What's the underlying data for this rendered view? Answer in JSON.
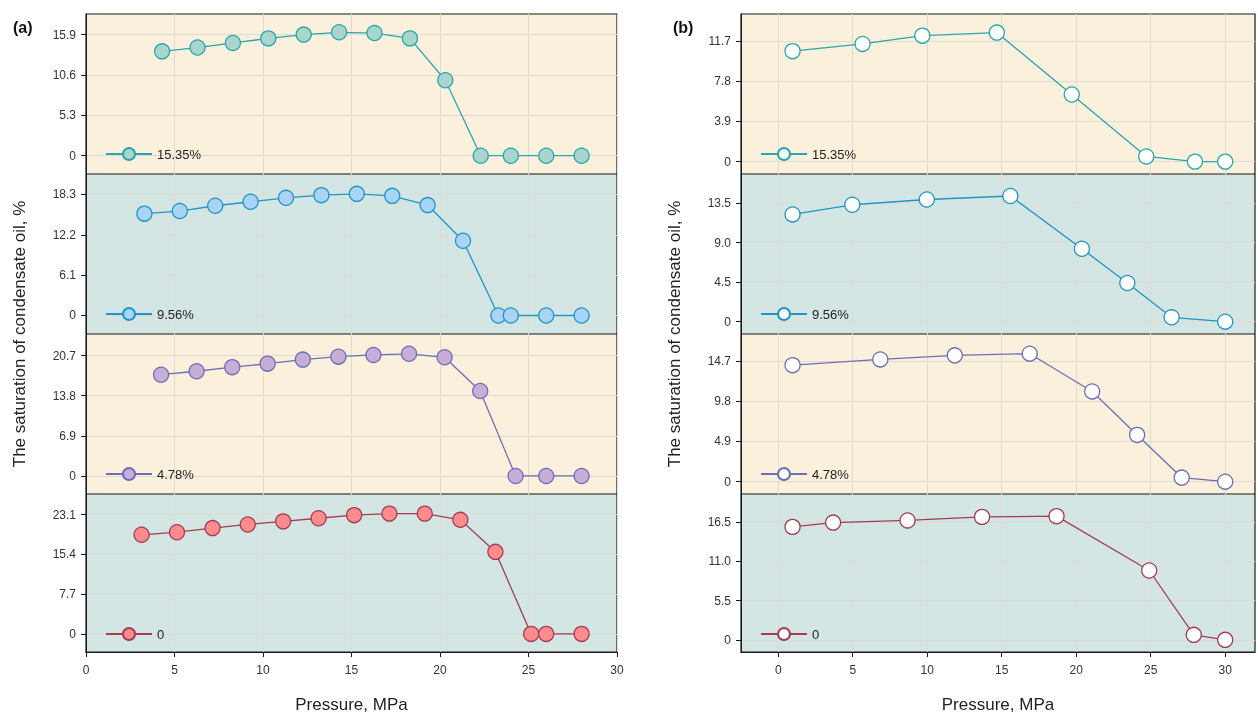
{
  "chart_data": [
    {
      "type": "line",
      "title": "(a)",
      "ylabel": "The saturation of condensate oil, %",
      "x": [
        4.3,
        6.3,
        8.3,
        10.3,
        12.3,
        14.3,
        16.3,
        18.3,
        20.3,
        22.3,
        24,
        26,
        28
      ],
      "series": [
        {
          "name": "15.35%",
          "color": "#2aa6ae",
          "colors": [
            "#a8d6cd",
            "#a8d6cd",
            "#a8d6cd",
            "#a8d6cd",
            "#a8d6cd",
            "#a8d6cd",
            "#a8d6cd",
            "#a8d6cd",
            "#a8d6cd",
            "#a8d6cd",
            "#a8d6cd",
            "#a8d6cd",
            "#a8d6cd"
          ],
          "values": [
            13.7,
            14.2,
            14.8,
            15.4,
            15.9,
            16.2,
            16.1,
            15.4,
            9.9,
            0,
            0,
            0,
            0
          ]
        }
      ],
      "xlim": [
        0,
        30
      ],
      "xticks": [
        0,
        5,
        10,
        15,
        20,
        25,
        30
      ],
      "ylim": [
        -2.4,
        18.6
      ],
      "yticks": [
        0,
        5.3,
        10.6,
        15.9
      ],
      "grid": true,
      "legend": "bottom left",
      "marker": "circle",
      "tick_labels": "y"
    },
    {
      "type": "line",
      "x": [
        3.3,
        5.3,
        7.3,
        9.3,
        11.3,
        13.3,
        15.3,
        17.3,
        19.3,
        21.3,
        23.3,
        24,
        26,
        28
      ],
      "series": [
        {
          "name": "9.56%",
          "color": "#1e96c6",
          "colors": [
            "#aad4f5",
            "#aad4f5",
            "#aad4f5",
            "#aad4f5",
            "#aad4f5",
            "#aad4f5",
            "#aad4f5",
            "#aad4f5",
            "#aad4f5",
            "#aad4f5",
            "#aad4f5",
            "#aad4f5",
            "#aad4f5",
            "#aad4f5"
          ],
          "values": [
            15.4,
            15.8,
            16.6,
            17.2,
            17.8,
            18.2,
            18.4,
            18.1,
            16.7,
            11.3,
            0,
            0,
            0,
            0
          ]
        }
      ],
      "xlim": [
        0,
        30
      ],
      "xticks": [
        0,
        5,
        10,
        15,
        20,
        25,
        30
      ],
      "ylim": [
        -2.8,
        21.4
      ],
      "yticks": [
        0,
        6.1,
        12.2,
        18.3
      ],
      "grid": true,
      "legend": "bottom left",
      "marker": "circle",
      "tick_labels": "y"
    },
    {
      "type": "line",
      "x": [
        4.24,
        6.25,
        8.26,
        10.26,
        12.25,
        14.26,
        16.24,
        18.25,
        20.26,
        22.27,
        24.27,
        26,
        28
      ],
      "series": [
        {
          "name": "4.78%",
          "color": "#6e6eb6",
          "colors": [
            "#c6aed8",
            "#c6aed8",
            "#c6aed8",
            "#c6aed8",
            "#c6aed8",
            "#c6aed8",
            "#c6aed8",
            "#c6aed8",
            "#c6aed8",
            "#c6aed8",
            "#c6aed8",
            "#c6aed8",
            "#c6aed8"
          ],
          "values": [
            17.4,
            18,
            18.7,
            19.3,
            20,
            20.5,
            20.8,
            21,
            20.4,
            14.6,
            0,
            0,
            0
          ]
        }
      ],
      "xlim": [
        0,
        30
      ],
      "xticks": [
        0,
        5,
        10,
        15,
        20,
        25,
        30
      ],
      "ylim": [
        -3.1,
        24.4
      ],
      "yticks": [
        0,
        6.9,
        13.8,
        20.7
      ],
      "grid": true,
      "legend": "bottom left",
      "marker": "circle",
      "tick_labels": "y"
    },
    {
      "type": "line",
      "xlabel": "Pressure, MPa",
      "x": [
        3.14,
        5.14,
        7.15,
        9.14,
        11.14,
        13.14,
        15.15,
        17.14,
        19.14,
        21.15,
        23.13,
        25.15,
        26,
        28
      ],
      "series": [
        {
          "name": "0",
          "color": "#a23c58",
          "colors": [
            "#ff8c8c",
            "#ff8c8c",
            "#ff8c8c",
            "#ff8c8c",
            "#ff8c8c",
            "#ff8c8c",
            "#ff8c8c",
            "#ff8c8c",
            "#ff8c8c",
            "#ff8c8c",
            "#ff8c8c",
            "#ff8c8c",
            "#ff8c8c",
            "#ff8c8c"
          ],
          "values": [
            19.2,
            19.7,
            20.5,
            21.2,
            21.8,
            22.4,
            23,
            23.3,
            23.3,
            22.1,
            15.9,
            0,
            0,
            0
          ]
        }
      ],
      "xlim": [
        0,
        30
      ],
      "xticks": [
        0,
        5,
        10,
        15,
        20,
        25,
        30
      ],
      "ylim": [
        -3.5,
        27.1
      ],
      "yticks": [
        0,
        7.7,
        15.4,
        23.1
      ],
      "grid": true,
      "legend": "bottom left",
      "marker": "circle"
    },
    {
      "type": "line",
      "title": "(b)",
      "ylabel": "The saturation of condensate oil, %",
      "x": [
        0.96,
        5.66,
        9.67,
        14.67,
        19.7,
        24.7,
        27.97,
        30
      ],
      "series": [
        {
          "name": "15.35%",
          "color": "#2aa6ae",
          "colors": [
            "#ffffff",
            "#ffffff",
            "#ffffff",
            "#ffffff",
            "#ffffff",
            "#ffffff",
            "#ffffff",
            "#ffffff"
          ],
          "values": [
            10.7,
            11.4,
            12.2,
            12.5,
            6.5,
            0.5,
            0,
            0
          ]
        }
      ],
      "xlim": [
        -2.5,
        32
      ],
      "xticks": [
        0,
        5,
        10,
        15,
        20,
        25,
        30
      ],
      "ylim": [
        -1.2,
        14.3
      ],
      "yticks": [
        0,
        3.9,
        7.8,
        11.7
      ],
      "grid": true,
      "legend": "bottom left",
      "marker": "circle",
      "tick_labels": "y"
    },
    {
      "type": "line",
      "x": [
        0.96,
        4.97,
        9.97,
        15.58,
        20.38,
        23.43,
        26.4,
        30
      ],
      "series": [
        {
          "name": "9.56%",
          "color": "#1e96c6",
          "colors": [
            "#ffffff",
            "#ffffff",
            "#ffffff",
            "#ffffff",
            "#ffffff",
            "#ffffff",
            "#ffffff",
            "#ffffff"
          ],
          "values": [
            12.2,
            13.3,
            13.9,
            14.3,
            8.3,
            4.4,
            0.5,
            0
          ]
        }
      ],
      "xlim": [
        -2.5,
        32
      ],
      "xticks": [
        0,
        5,
        10,
        15,
        20,
        25,
        30
      ],
      "ylim": [
        -1.4,
        16.8
      ],
      "yticks": [
        0,
        {
          "value": 4.5,
          "label": "4.5"
        },
        {
          "value": 9,
          "label": "9.0"
        },
        13.5
      ],
      "grid": true,
      "legend": "bottom left",
      "marker": "circle",
      "tick_labels": "y"
    },
    {
      "type": "line",
      "x": [
        0.96,
        6.85,
        11.85,
        16.88,
        21.07,
        24.09,
        27.08,
        30
      ],
      "series": [
        {
          "name": "4.78%",
          "color": "#6e6eb6",
          "colors": [
            "#ffffff",
            "#ffffff",
            "#ffffff",
            "#ffffff",
            "#ffffff",
            "#ffffff",
            "#ffffff",
            "#ffffff"
          ],
          "values": [
            14.2,
            14.9,
            15.4,
            15.6,
            11,
            5.7,
            0.5,
            0
          ]
        }
      ],
      "xlim": [
        -2.5,
        32
      ],
      "xticks": [
        0,
        5,
        10,
        15,
        20,
        25,
        30
      ],
      "ylim": [
        -1.5,
        18
      ],
      "yticks": [
        0,
        4.9,
        9.8,
        14.7
      ],
      "grid": true,
      "legend": "bottom left",
      "marker": "circle",
      "tick_labels": "y"
    },
    {
      "type": "line",
      "xlabel": "Pressure, MPa",
      "x": [
        0.96,
        3.68,
        8.68,
        13.68,
        18.68,
        24.9,
        27.89,
        30
      ],
      "series": [
        {
          "name": "0",
          "color": "#a23c58",
          "colors": [
            "#ffffff",
            "#ffffff",
            "#ffffff",
            "#ffffff",
            "#ffffff",
            "#ffffff",
            "#ffffff",
            "#ffffff"
          ],
          "values": [
            15.8,
            16.4,
            16.7,
            17.2,
            17.3,
            9.7,
            0.7,
            0
          ]
        }
      ],
      "xlim": [
        -2.5,
        32
      ],
      "xticks": [
        0,
        5,
        10,
        15,
        20,
        25,
        30
      ],
      "ylim": [
        -1.7,
        20.4
      ],
      "yticks": [
        0,
        5.5,
        {
          "value": 11,
          "label": "11.0"
        },
        16.5
      ],
      "grid": true,
      "legend": "bottom left",
      "marker": "circle"
    }
  ]
}
